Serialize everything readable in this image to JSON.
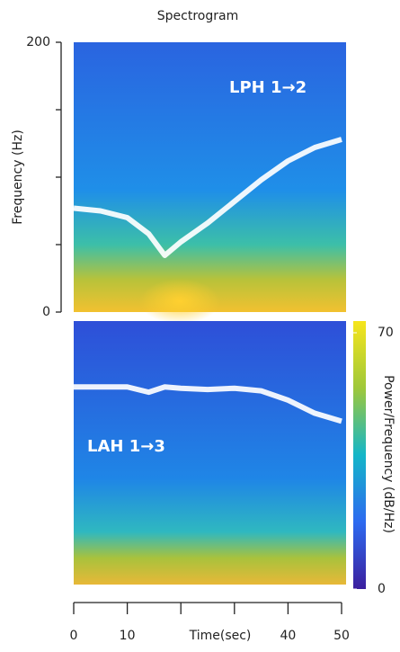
{
  "chart_data": {
    "type": "spectrogram",
    "title": "Spectrogram",
    "ylabel": "Frequency (Hz)",
    "xlabel": "Time(sec)",
    "xlim": [
      0,
      50
    ],
    "xticks": [
      0,
      10,
      40,
      50
    ],
    "minor_xticks": [
      20,
      30
    ],
    "ylim": [
      0,
      200
    ],
    "yticks": [
      0,
      200
    ],
    "minor_yticks": [
      50,
      100,
      150
    ],
    "colorbar": {
      "label": "Power/Frequency (dB/Hz)",
      "clim": [
        0,
        70
      ],
      "ticks": [
        0,
        70
      ]
    },
    "trace_color": "#ffffff",
    "panels": [
      {
        "annotation": "LPH 1→2",
        "x": [
          0,
          5,
          10,
          14,
          17,
          20,
          25,
          30,
          35,
          40,
          45,
          50
        ],
        "values": [
          77,
          75,
          70,
          58,
          42,
          52,
          66,
          82,
          98,
          112,
          122,
          128
        ]
      },
      {
        "annotation": "LAH 1→3",
        "x": [
          0,
          5,
          10,
          14,
          17,
          20,
          25,
          30,
          35,
          40,
          45,
          50
        ],
        "values": [
          150,
          150,
          150,
          146,
          150,
          149,
          148,
          149,
          147,
          140,
          130,
          124
        ]
      }
    ]
  }
}
